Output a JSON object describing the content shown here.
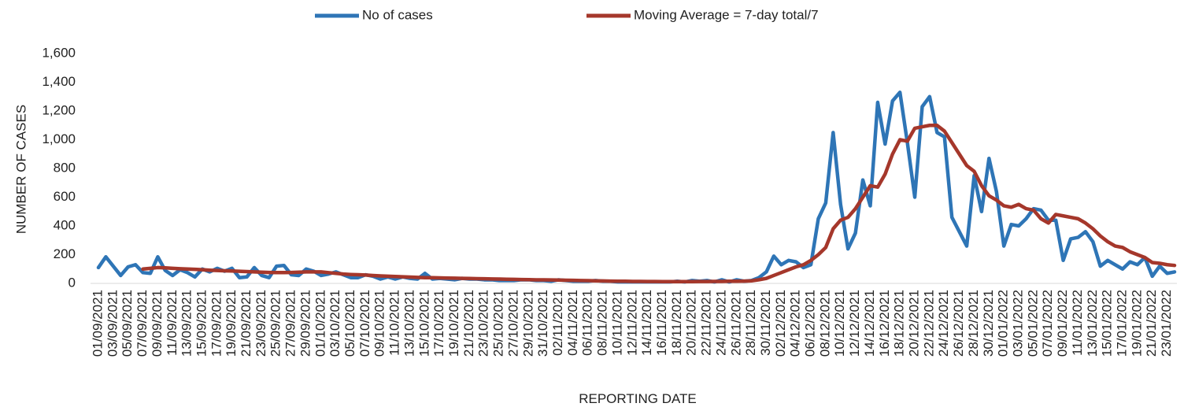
{
  "chart_data": {
    "type": "line",
    "xlabel": "REPORTING DATE",
    "ylabel": "NUMBER OF CASES",
    "ylim": [
      0,
      1600
    ],
    "yticks": [
      0,
      200,
      400,
      600,
      800,
      {
        "value": 1000,
        "label": "1,000"
      },
      {
        "value": 1200,
        "label": "1,200"
      },
      {
        "value": 1400,
        "label": "1,400"
      },
      {
        "value": 1600,
        "label": "1,600"
      }
    ],
    "grid": false,
    "legend": "top",
    "categories": [
      "01/09/2021",
      null,
      "03/09/2021",
      null,
      "05/09/2021",
      null,
      "07/09/2021",
      null,
      "09/09/2021",
      null,
      "11/09/2021",
      null,
      "13/09/2021",
      null,
      "15/09/2021",
      null,
      "17/09/2021",
      null,
      "19/09/2021",
      null,
      "21/09/2021",
      null,
      "23/09/2021",
      null,
      "25/09/2021",
      null,
      "27/09/2021",
      null,
      "29/09/2021",
      null,
      "01/10/2021",
      null,
      "03/10/2021",
      null,
      "05/10/2021",
      null,
      "07/10/2021",
      null,
      "09/10/2021",
      null,
      "11/10/2021",
      null,
      "13/10/2021",
      null,
      "15/10/2021",
      null,
      "17/10/2021",
      null,
      "19/10/2021",
      null,
      "21/10/2021",
      null,
      "23/10/2021",
      null,
      "25/10/2021",
      null,
      "27/10/2021",
      null,
      "29/10/2021",
      null,
      "31/10/2021",
      null,
      "02/11/2021",
      null,
      "04/11/2021",
      null,
      "06/11/2021",
      null,
      "08/11/2021",
      null,
      "10/11/2021",
      null,
      "12/11/2021",
      null,
      "14/11/2021",
      null,
      "16/11/2021",
      null,
      "18/11/2021",
      null,
      "20/11/2021",
      null,
      "22/11/2021",
      null,
      "24/11/2021",
      null,
      "26/11/2021",
      null,
      "28/11/2021",
      null,
      "30/11/2021",
      null,
      "02/12/2021",
      null,
      "04/12/2021",
      null,
      "06/12/2021",
      null,
      "08/12/2021",
      null,
      "10/12/2021",
      null,
      "12/12/2021",
      null,
      "14/12/2021",
      null,
      "16/12/2021",
      null,
      "18/12/2021",
      null,
      "20/12/2021",
      null,
      "22/12/2021",
      null,
      "24/12/2021",
      null,
      "26/12/2021",
      null,
      "28/12/2021",
      null,
      "30/12/2021",
      null,
      "01/01/2022",
      null,
      "03/01/2022",
      null,
      "05/01/2022",
      null,
      "07/01/2022",
      null,
      "09/01/2022",
      null,
      "11/01/2022",
      null,
      "13/01/2022",
      null,
      "15/01/2022",
      null,
      "17/01/2022",
      null,
      "19/01/2022",
      null,
      "21/01/2022",
      null,
      "23/01/2022",
      null
    ],
    "series": [
      {
        "name": "No of cases",
        "color": "#2e75b6",
        "values": [
          110,
          185,
          120,
          55,
          115,
          130,
          75,
          70,
          185,
          90,
          55,
          95,
          75,
          45,
          100,
          80,
          105,
          85,
          105,
          40,
          45,
          110,
          55,
          40,
          120,
          125,
          60,
          55,
          100,
          85,
          55,
          65,
          80,
          60,
          40,
          40,
          60,
          50,
          30,
          45,
          30,
          45,
          35,
          30,
          70,
          30,
          35,
          30,
          25,
          35,
          30,
          30,
          25,
          25,
          20,
          20,
          20,
          25,
          25,
          20,
          20,
          15,
          25,
          20,
          15,
          15,
          15,
          20,
          15,
          15,
          10,
          10,
          10,
          10,
          10,
          10,
          10,
          10,
          15,
          10,
          20,
          15,
          20,
          10,
          25,
          10,
          25,
          15,
          20,
          40,
          80,
          190,
          130,
          160,
          150,
          110,
          130,
          450,
          560,
          1050,
          550,
          240,
          350,
          720,
          540,
          1260,
          970,
          1270,
          1330,
          980,
          600,
          1230,
          1300,
          1050,
          1020,
          460,
          360,
          260,
          750,
          500,
          870,
          640,
          260,
          410,
          400,
          450,
          520,
          510,
          440,
          440,
          160,
          310,
          320,
          360,
          290,
          120,
          160,
          130,
          100,
          150,
          130,
          180,
          50,
          120,
          70,
          80
        ]
      },
      {
        "name": "Moving Average = 7-day total/7",
        "color": "#a5372b",
        "values": [
          null,
          null,
          null,
          null,
          null,
          null,
          100,
          105,
          110,
          108,
          105,
          102,
          100,
          98,
          95,
          92,
          90,
          88,
          86,
          84,
          82,
          80,
          78,
          76,
          75,
          75,
          76,
          78,
          80,
          80,
          80,
          75,
          70,
          65,
          62,
          60,
          58,
          55,
          52,
          50,
          48,
          46,
          44,
          42,
          40,
          40,
          38,
          37,
          36,
          35,
          34,
          33,
          32,
          31,
          30,
          29,
          28,
          27,
          26,
          25,
          25,
          24,
          23,
          22,
          21,
          20,
          19,
          18,
          17,
          16,
          15,
          15,
          14,
          14,
          13,
          13,
          12,
          12,
          12,
          12,
          12,
          13,
          13,
          14,
          14,
          15,
          15,
          16,
          18,
          25,
          35,
          55,
          75,
          95,
          115,
          130,
          160,
          200,
          250,
          380,
          440,
          460,
          520,
          600,
          680,
          670,
          760,
          900,
          1000,
          990,
          1080,
          1090,
          1100,
          1100,
          1060,
          980,
          900,
          820,
          780,
          680,
          610,
          580,
          540,
          530,
          550,
          520,
          510,
          450,
          420,
          480,
          470,
          460,
          450,
          420,
          380,
          330,
          290,
          260,
          250,
          220,
          200,
          180,
          145,
          140,
          130,
          125
        ]
      }
    ]
  }
}
